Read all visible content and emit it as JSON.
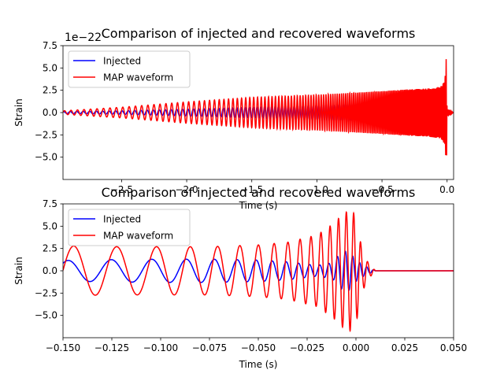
{
  "chart_data": [
    {
      "type": "line",
      "title": "Comparison of injected and recovered waveforms",
      "xlabel": "Time (s)",
      "ylabel": "Strain",
      "offset_label": "1e−22",
      "xlim": [
        -2.95,
        0.05
      ],
      "ylim": [
        -7.5,
        7.5
      ],
      "xticks": [
        -2.5,
        -2.0,
        -1.5,
        -1.0,
        -0.5,
        0.0
      ],
      "xtick_labels": [
        "−2.5",
        "−2.0",
        "−1.5",
        "−1.0",
        "−0.5",
        "0.0"
      ],
      "yticks": [
        -5.0,
        -2.5,
        0.0,
        2.5,
        5.0,
        7.5
      ],
      "ytick_labels": [
        "−5.0",
        "−2.5",
        "0.0",
        "2.5",
        "5.0",
        "7.5"
      ],
      "grid": false,
      "legend": "upper left",
      "series": [
        {
          "name": "Injected",
          "color": "#0000ff",
          "x": [
            -2.95,
            -2.5,
            -2.0,
            -1.5,
            -1.0,
            -0.5,
            -0.3,
            -0.15,
            -0.05,
            -0.02,
            -0.01,
            0.0,
            0.05
          ],
          "envelope": [
            0.1,
            0.2,
            0.4,
            0.6,
            0.8,
            1.0,
            1.1,
            1.2,
            1.4,
            1.8,
            2.0,
            0.2,
            0.0
          ]
        },
        {
          "name": "MAP waveform",
          "color": "#ff0000",
          "x": [
            -2.95,
            -2.5,
            -2.0,
            -1.5,
            -1.0,
            -0.5,
            -0.3,
            -0.15,
            -0.05,
            -0.02,
            -0.01,
            -0.005,
            0.0,
            0.05
          ],
          "envelope": [
            0.2,
            0.6,
            1.2,
            1.7,
            2.0,
            2.4,
            2.6,
            2.7,
            2.9,
            3.5,
            5.0,
            6.8,
            0.4,
            0.0
          ]
        }
      ]
    },
    {
      "type": "line",
      "title": "Comparison of injected and recovered waveforms",
      "xlabel": "Time (s)",
      "ylabel": "Strain",
      "xlim": [
        -0.15,
        0.05
      ],
      "ylim": [
        -7.5,
        7.5
      ],
      "xticks": [
        -0.15,
        -0.125,
        -0.1,
        -0.075,
        -0.05,
        -0.025,
        0.0,
        0.025,
        0.05
      ],
      "xtick_labels": [
        "−0.150",
        "−0.125",
        "−0.100",
        "−0.075",
        "−0.050",
        "−0.025",
        "0.000",
        "0.025",
        "0.050"
      ],
      "yticks": [
        -5.0,
        -2.5,
        0.0,
        2.5,
        5.0,
        7.5
      ],
      "ytick_labels": [
        "−5.0",
        "−2.5",
        "0.0",
        "2.5",
        "5.0",
        "7.5"
      ],
      "grid": false,
      "legend": "upper left",
      "series": [
        {
          "name": "Injected",
          "color": "#0000ff",
          "x": [
            -0.15,
            -0.125,
            -0.1,
            -0.075,
            -0.05,
            -0.035,
            -0.02,
            -0.012,
            -0.008,
            -0.004,
            0.0,
            0.004,
            0.01,
            0.05
          ],
          "envelope": [
            1.15,
            1.25,
            1.3,
            1.3,
            1.2,
            1.0,
            0.6,
            0.9,
            2.0,
            2.3,
            1.2,
            0.6,
            0.0,
            0.0
          ]
        },
        {
          "name": "MAP waveform",
          "color": "#ff0000",
          "x": [
            -0.15,
            -0.125,
            -0.1,
            -0.075,
            -0.05,
            -0.035,
            -0.02,
            -0.012,
            -0.006,
            -0.002,
            0.0,
            0.003,
            0.006,
            0.01,
            0.05
          ],
          "envelope": [
            2.8,
            2.7,
            2.7,
            2.7,
            2.9,
            3.2,
            4.0,
            5.2,
            6.5,
            6.8,
            6.0,
            2.5,
            1.0,
            0.0,
            0.0
          ]
        }
      ]
    }
  ]
}
